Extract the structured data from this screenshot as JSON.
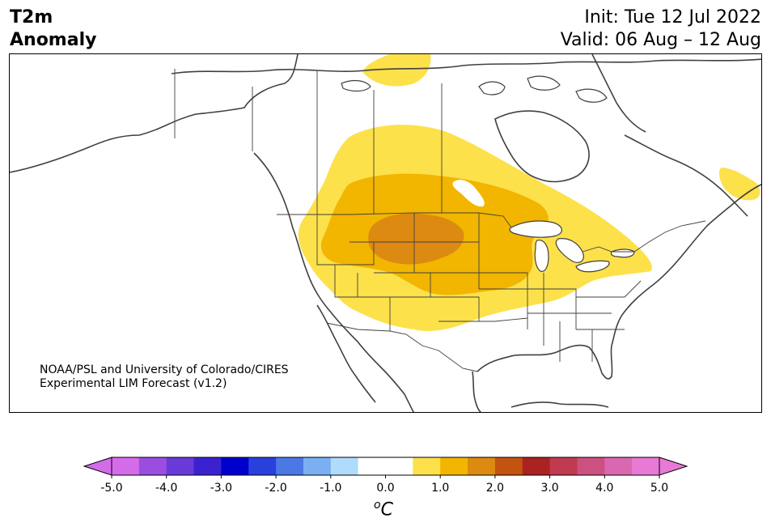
{
  "title": {
    "line1": "T2m",
    "line2": "Anomaly"
  },
  "init_text": "Init: Tue 12 Jul 2022",
  "valid_text": "Valid: 06 Aug – 12 Aug",
  "credit": {
    "line1": "NOAA/PSL and University of Colorado/CIRES",
    "line2": "Experimental LIM Forecast (v1.2)"
  },
  "colorbar": {
    "unit_base": "C",
    "unit_sup": "o",
    "tick_labels": [
      "-5.0",
      "-4.0",
      "-3.0",
      "-2.0",
      "-1.0",
      "0.0",
      "1.0",
      "2.0",
      "3.0",
      "4.0",
      "5.0"
    ],
    "colors": [
      "#d46cea",
      "#9a4ee0",
      "#6a3ad8",
      "#3a22d0",
      "#0000cc",
      "#2a40dc",
      "#4c78e6",
      "#7ab0f2",
      "#aedcfa",
      "#ffffff",
      "#ffffff",
      "#fce14a",
      "#f2b500",
      "#dc8a12",
      "#c25410",
      "#aa2222",
      "#c03a50",
      "#cc5080",
      "#da68b0",
      "#e87ad6"
    ],
    "under_color": "#d46cea",
    "over_color": "#e87ad6"
  },
  "anomaly_colors": {
    "c0_5": "#fce14a",
    "c1_0": "#f2b500",
    "c1_5": "#dc8a12"
  }
}
